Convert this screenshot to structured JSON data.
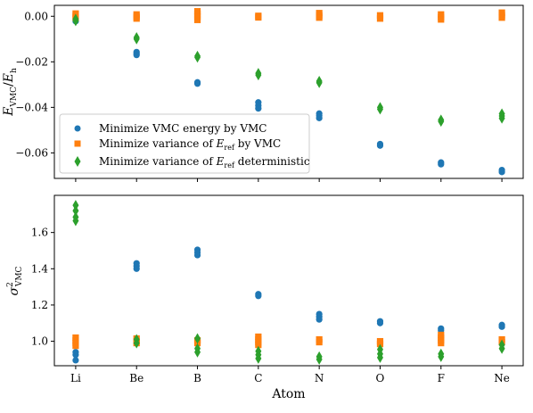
{
  "chart_data": [
    {
      "type": "scatter",
      "panel": "top",
      "ylabel": "E_VMC / E_h",
      "xlabel": "",
      "categories": [
        "Li",
        "Be",
        "B",
        "C",
        "N",
        "O",
        "F",
        "Ne"
      ],
      "ylim": [
        -0.0712,
        0.0048
      ],
      "yticks": [
        "0.00",
        "−0.02",
        "−0.04",
        "−0.06"
      ],
      "ytick_values": [
        0.0,
        -0.02,
        -0.04,
        -0.06
      ],
      "grid": false,
      "legend": "lower-left",
      "series": [
        {
          "name": "Minimize VMC energy by VMC",
          "marker": "circle",
          "color": "#1f77b4",
          "points": [
            {
              "x": "Li",
              "y": -0.0015
            },
            {
              "x": "Li",
              "y": -0.0022
            },
            {
              "x": "Be",
              "y": -0.0157
            },
            {
              "x": "Be",
              "y": -0.0163
            },
            {
              "x": "Be",
              "y": -0.017
            },
            {
              "x": "B",
              "y": -0.029
            },
            {
              "x": "B",
              "y": -0.0296
            },
            {
              "x": "C",
              "y": -0.0378
            },
            {
              "x": "C",
              "y": -0.0392
            },
            {
              "x": "C",
              "y": -0.0405
            },
            {
              "x": "N",
              "y": -0.0427
            },
            {
              "x": "N",
              "y": -0.0436
            },
            {
              "x": "N",
              "y": -0.0447
            },
            {
              "x": "O",
              "y": -0.0561
            },
            {
              "x": "O",
              "y": -0.0568
            },
            {
              "x": "F",
              "y": -0.0642
            },
            {
              "x": "F",
              "y": -0.065
            },
            {
              "x": "Ne",
              "y": -0.0675
            },
            {
              "x": "Ne",
              "y": -0.0684
            }
          ]
        },
        {
          "name": "Minimize variance of E_ref by VMC",
          "marker": "square",
          "color": "#ff7f0e",
          "points": [
            {
              "x": "Li",
              "y": 0.0012
            },
            {
              "x": "Li",
              "y": 0.0003
            },
            {
              "x": "Li",
              "y": -0.0006
            },
            {
              "x": "Be",
              "y": 0.0008
            },
            {
              "x": "Be",
              "y": -0.0002
            },
            {
              "x": "Be",
              "y": -0.001
            },
            {
              "x": "B",
              "y": 0.0022
            },
            {
              "x": "B",
              "y": 0.001
            },
            {
              "x": "B",
              "y": -0.0002
            },
            {
              "x": "B",
              "y": -0.0016
            },
            {
              "x": "C",
              "y": 0.0002
            },
            {
              "x": "C",
              "y": -0.0005
            },
            {
              "x": "N",
              "y": 0.0014
            },
            {
              "x": "N",
              "y": 0.0003
            },
            {
              "x": "N",
              "y": -0.0006
            },
            {
              "x": "O",
              "y": 0.0004
            },
            {
              "x": "O",
              "y": -0.001
            },
            {
              "x": "F",
              "y": 0.0008
            },
            {
              "x": "F",
              "y": -0.0004
            },
            {
              "x": "F",
              "y": -0.0014
            },
            {
              "x": "Ne",
              "y": 0.0016
            },
            {
              "x": "Ne",
              "y": 0.0004
            },
            {
              "x": "Ne",
              "y": -0.0006
            }
          ]
        },
        {
          "name": "Minimize variance of E_ref deterministic",
          "marker": "diamond",
          "color": "#2ca02c",
          "points": [
            {
              "x": "Li",
              "y": -0.0012
            },
            {
              "x": "Li",
              "y": -0.002
            },
            {
              "x": "Be",
              "y": -0.0093
            },
            {
              "x": "Be",
              "y": -0.01
            },
            {
              "x": "B",
              "y": -0.0175
            },
            {
              "x": "B",
              "y": -0.018
            },
            {
              "x": "C",
              "y": -0.025
            },
            {
              "x": "C",
              "y": -0.0258
            },
            {
              "x": "N",
              "y": -0.0285
            },
            {
              "x": "N",
              "y": -0.0292
            },
            {
              "x": "O",
              "y": -0.04
            },
            {
              "x": "O",
              "y": -0.0408
            },
            {
              "x": "F",
              "y": -0.0455
            },
            {
              "x": "F",
              "y": -0.0462
            },
            {
              "x": "Ne",
              "y": -0.0428
            },
            {
              "x": "Ne",
              "y": -0.0438
            },
            {
              "x": "Ne",
              "y": -0.0448
            }
          ]
        }
      ]
    },
    {
      "type": "scatter",
      "panel": "bottom",
      "ylabel": "σ²_VMC",
      "xlabel": "Atom",
      "categories": [
        "Li",
        "Be",
        "B",
        "C",
        "N",
        "O",
        "F",
        "Ne"
      ],
      "ylim": [
        0.865,
        1.805
      ],
      "yticks": [
        "1.0",
        "1.2",
        "1.4",
        "1.6"
      ],
      "ytick_values": [
        1.0,
        1.2,
        1.4,
        1.6
      ],
      "grid": false,
      "series": [
        {
          "name": "Minimize VMC energy by VMC",
          "marker": "circle",
          "color": "#1f77b4",
          "points": [
            {
              "x": "Li",
              "y": 0.94
            },
            {
              "x": "Li",
              "y": 0.925
            },
            {
              "x": "Li",
              "y": 0.895
            },
            {
              "x": "Be",
              "y": 1.43
            },
            {
              "x": "Be",
              "y": 1.415
            },
            {
              "x": "Be",
              "y": 1.4
            },
            {
              "x": "B",
              "y": 1.505
            },
            {
              "x": "B",
              "y": 1.49
            },
            {
              "x": "B",
              "y": 1.475
            },
            {
              "x": "C",
              "y": 1.26
            },
            {
              "x": "C",
              "y": 1.25
            },
            {
              "x": "N",
              "y": 1.15
            },
            {
              "x": "N",
              "y": 1.135
            },
            {
              "x": "N",
              "y": 1.12
            },
            {
              "x": "O",
              "y": 1.11
            },
            {
              "x": "O",
              "y": 1.1
            },
            {
              "x": "F",
              "y": 1.07
            },
            {
              "x": "F",
              "y": 1.06
            },
            {
              "x": "Ne",
              "y": 1.09
            },
            {
              "x": "Ne",
              "y": 1.08
            }
          ]
        },
        {
          "name": "Minimize variance of E_ref by VMC",
          "marker": "square",
          "color": "#ff7f0e",
          "points": [
            {
              "x": "Li",
              "y": 1.02
            },
            {
              "x": "Li",
              "y": 1.005
            },
            {
              "x": "Li",
              "y": 0.99
            },
            {
              "x": "Li",
              "y": 0.975
            },
            {
              "x": "Be",
              "y": 1.015
            },
            {
              "x": "Be",
              "y": 1.0
            },
            {
              "x": "Be",
              "y": 0.99
            },
            {
              "x": "B",
              "y": 1.005
            },
            {
              "x": "B",
              "y": 0.99
            },
            {
              "x": "C",
              "y": 1.025
            },
            {
              "x": "C",
              "y": 1.01
            },
            {
              "x": "C",
              "y": 0.995
            },
            {
              "x": "C",
              "y": 0.98
            },
            {
              "x": "N",
              "y": 1.01
            },
            {
              "x": "N",
              "y": 0.995
            },
            {
              "x": "O",
              "y": 1.0
            },
            {
              "x": "O",
              "y": 0.985
            },
            {
              "x": "F",
              "y": 1.035
            },
            {
              "x": "F",
              "y": 1.02
            },
            {
              "x": "F",
              "y": 1.005
            },
            {
              "x": "F",
              "y": 0.99
            },
            {
              "x": "Ne",
              "y": 1.01
            },
            {
              "x": "Ne",
              "y": 0.995
            }
          ]
        },
        {
          "name": "Minimize variance of E_ref deterministic",
          "marker": "diamond",
          "color": "#2ca02c",
          "points": [
            {
              "x": "Li",
              "y": 1.75
            },
            {
              "x": "Li",
              "y": 1.72
            },
            {
              "x": "Li",
              "y": 1.685
            },
            {
              "x": "Li",
              "y": 1.665
            },
            {
              "x": "Be",
              "y": 1.01
            },
            {
              "x": "Be",
              "y": 0.99
            },
            {
              "x": "B",
              "y": 1.015
            },
            {
              "x": "B",
              "y": 0.96
            },
            {
              "x": "B",
              "y": 0.94
            },
            {
              "x": "C",
              "y": 0.945
            },
            {
              "x": "C",
              "y": 0.925
            },
            {
              "x": "C",
              "y": 0.905
            },
            {
              "x": "N",
              "y": 0.915
            },
            {
              "x": "N",
              "y": 0.9
            },
            {
              "x": "O",
              "y": 0.955
            },
            {
              "x": "O",
              "y": 0.93
            },
            {
              "x": "O",
              "y": 0.91
            },
            {
              "x": "F",
              "y": 0.93
            },
            {
              "x": "F",
              "y": 0.915
            },
            {
              "x": "Ne",
              "y": 0.98
            },
            {
              "x": "Ne",
              "y": 0.96
            }
          ]
        }
      ]
    }
  ],
  "legend": {
    "labels": [
      {
        "pre": "Minimize VMC energy by VMC"
      },
      {
        "pre": "Minimize variance of ",
        "sym": "E",
        "sub": "ref",
        "post": " by VMC"
      },
      {
        "pre": "Minimize variance of ",
        "sym": "E",
        "sub": "ref",
        "post": " deterministic"
      }
    ]
  },
  "axis_text": {
    "top_ylabel": {
      "sym": "E",
      "sub": "VMC",
      "slash": "/",
      "sym2": "E",
      "sub2": "h"
    },
    "bottom_ylabel": {
      "sym": "σ",
      "sup": "2",
      "sub": "VMC"
    },
    "xlabel": "Atom"
  }
}
